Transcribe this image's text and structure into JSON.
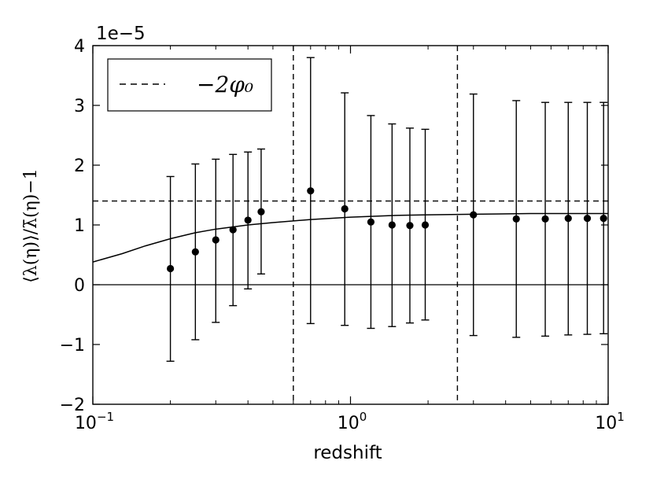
{
  "chart_data": {
    "type": "scatter",
    "xlabel": "redshift",
    "ylabel": "⟨λ(η)⟩/λ̄(η)−1",
    "x_scale": "log",
    "xlim": [
      0.1,
      10
    ],
    "ylim": [
      -2,
      4
    ],
    "y_multiplier_label": "1e−5",
    "x_ticks": [
      {
        "value": 0.1,
        "base": "10",
        "exp": "−1"
      },
      {
        "value": 1,
        "base": "10",
        "exp": "0"
      },
      {
        "value": 10,
        "base": "10",
        "exp": "1"
      }
    ],
    "y_ticks": [
      {
        "value": -2,
        "label": "−2"
      },
      {
        "value": -1,
        "label": "−1"
      },
      {
        "value": 0,
        "label": "0"
      },
      {
        "value": 1,
        "label": "1"
      },
      {
        "value": 2,
        "label": "2"
      },
      {
        "value": 3,
        "label": "3"
      },
      {
        "value": 4,
        "label": "4"
      }
    ],
    "legend": {
      "position": "top-left",
      "entries": [
        {
          "label": "−2φ₀",
          "style": "dashed"
        }
      ]
    },
    "reference_lines": {
      "horizontal_dashed_y": 1.4,
      "horizontal_solid_y": 0,
      "vertical_dashed_x": [
        0.6,
        2.6
      ]
    },
    "points": [
      {
        "x": 0.2,
        "y": 0.27,
        "err_low": -1.28,
        "err_high": 1.81
      },
      {
        "x": 0.25,
        "y": 0.55,
        "err_low": -0.92,
        "err_high": 2.02
      },
      {
        "x": 0.3,
        "y": 0.75,
        "err_low": -0.63,
        "err_high": 2.1
      },
      {
        "x": 0.35,
        "y": 0.92,
        "err_low": -0.35,
        "err_high": 2.18
      },
      {
        "x": 0.4,
        "y": 1.08,
        "err_low": -0.07,
        "err_high": 2.22
      },
      {
        "x": 0.45,
        "y": 1.22,
        "err_low": 0.18,
        "err_high": 2.27
      },
      {
        "x": 0.7,
        "y": 1.57,
        "err_low": -0.65,
        "err_high": 3.8
      },
      {
        "x": 0.95,
        "y": 1.27,
        "err_low": -0.68,
        "err_high": 3.21
      },
      {
        "x": 1.2,
        "y": 1.05,
        "err_low": -0.73,
        "err_high": 2.83
      },
      {
        "x": 1.45,
        "y": 1.0,
        "err_low": -0.7,
        "err_high": 2.69
      },
      {
        "x": 1.7,
        "y": 0.99,
        "err_low": -0.64,
        "err_high": 2.62
      },
      {
        "x": 1.95,
        "y": 1.0,
        "err_low": -0.59,
        "err_high": 2.6
      },
      {
        "x": 3.0,
        "y": 1.17,
        "err_low": -0.85,
        "err_high": 3.19
      },
      {
        "x": 4.4,
        "y": 1.1,
        "err_low": -0.88,
        "err_high": 3.08
      },
      {
        "x": 5.7,
        "y": 1.1,
        "err_low": -0.86,
        "err_high": 3.05
      },
      {
        "x": 7.0,
        "y": 1.11,
        "err_low": -0.84,
        "err_high": 3.05
      },
      {
        "x": 8.3,
        "y": 1.11,
        "err_low": -0.83,
        "err_high": 3.05
      },
      {
        "x": 9.6,
        "y": 1.11,
        "err_low": -0.82,
        "err_high": 3.05
      }
    ],
    "model_curve": [
      [
        0.1,
        0.38
      ],
      [
        0.13,
        0.52
      ],
      [
        0.16,
        0.65
      ],
      [
        0.2,
        0.77
      ],
      [
        0.25,
        0.87
      ],
      [
        0.3,
        0.93
      ],
      [
        0.4,
        1.0
      ],
      [
        0.5,
        1.04
      ],
      [
        0.7,
        1.09
      ],
      [
        1.0,
        1.13
      ],
      [
        1.5,
        1.16
      ],
      [
        2.0,
        1.17
      ],
      [
        3.0,
        1.18
      ],
      [
        5.0,
        1.19
      ],
      [
        10.0,
        1.19
      ]
    ]
  }
}
